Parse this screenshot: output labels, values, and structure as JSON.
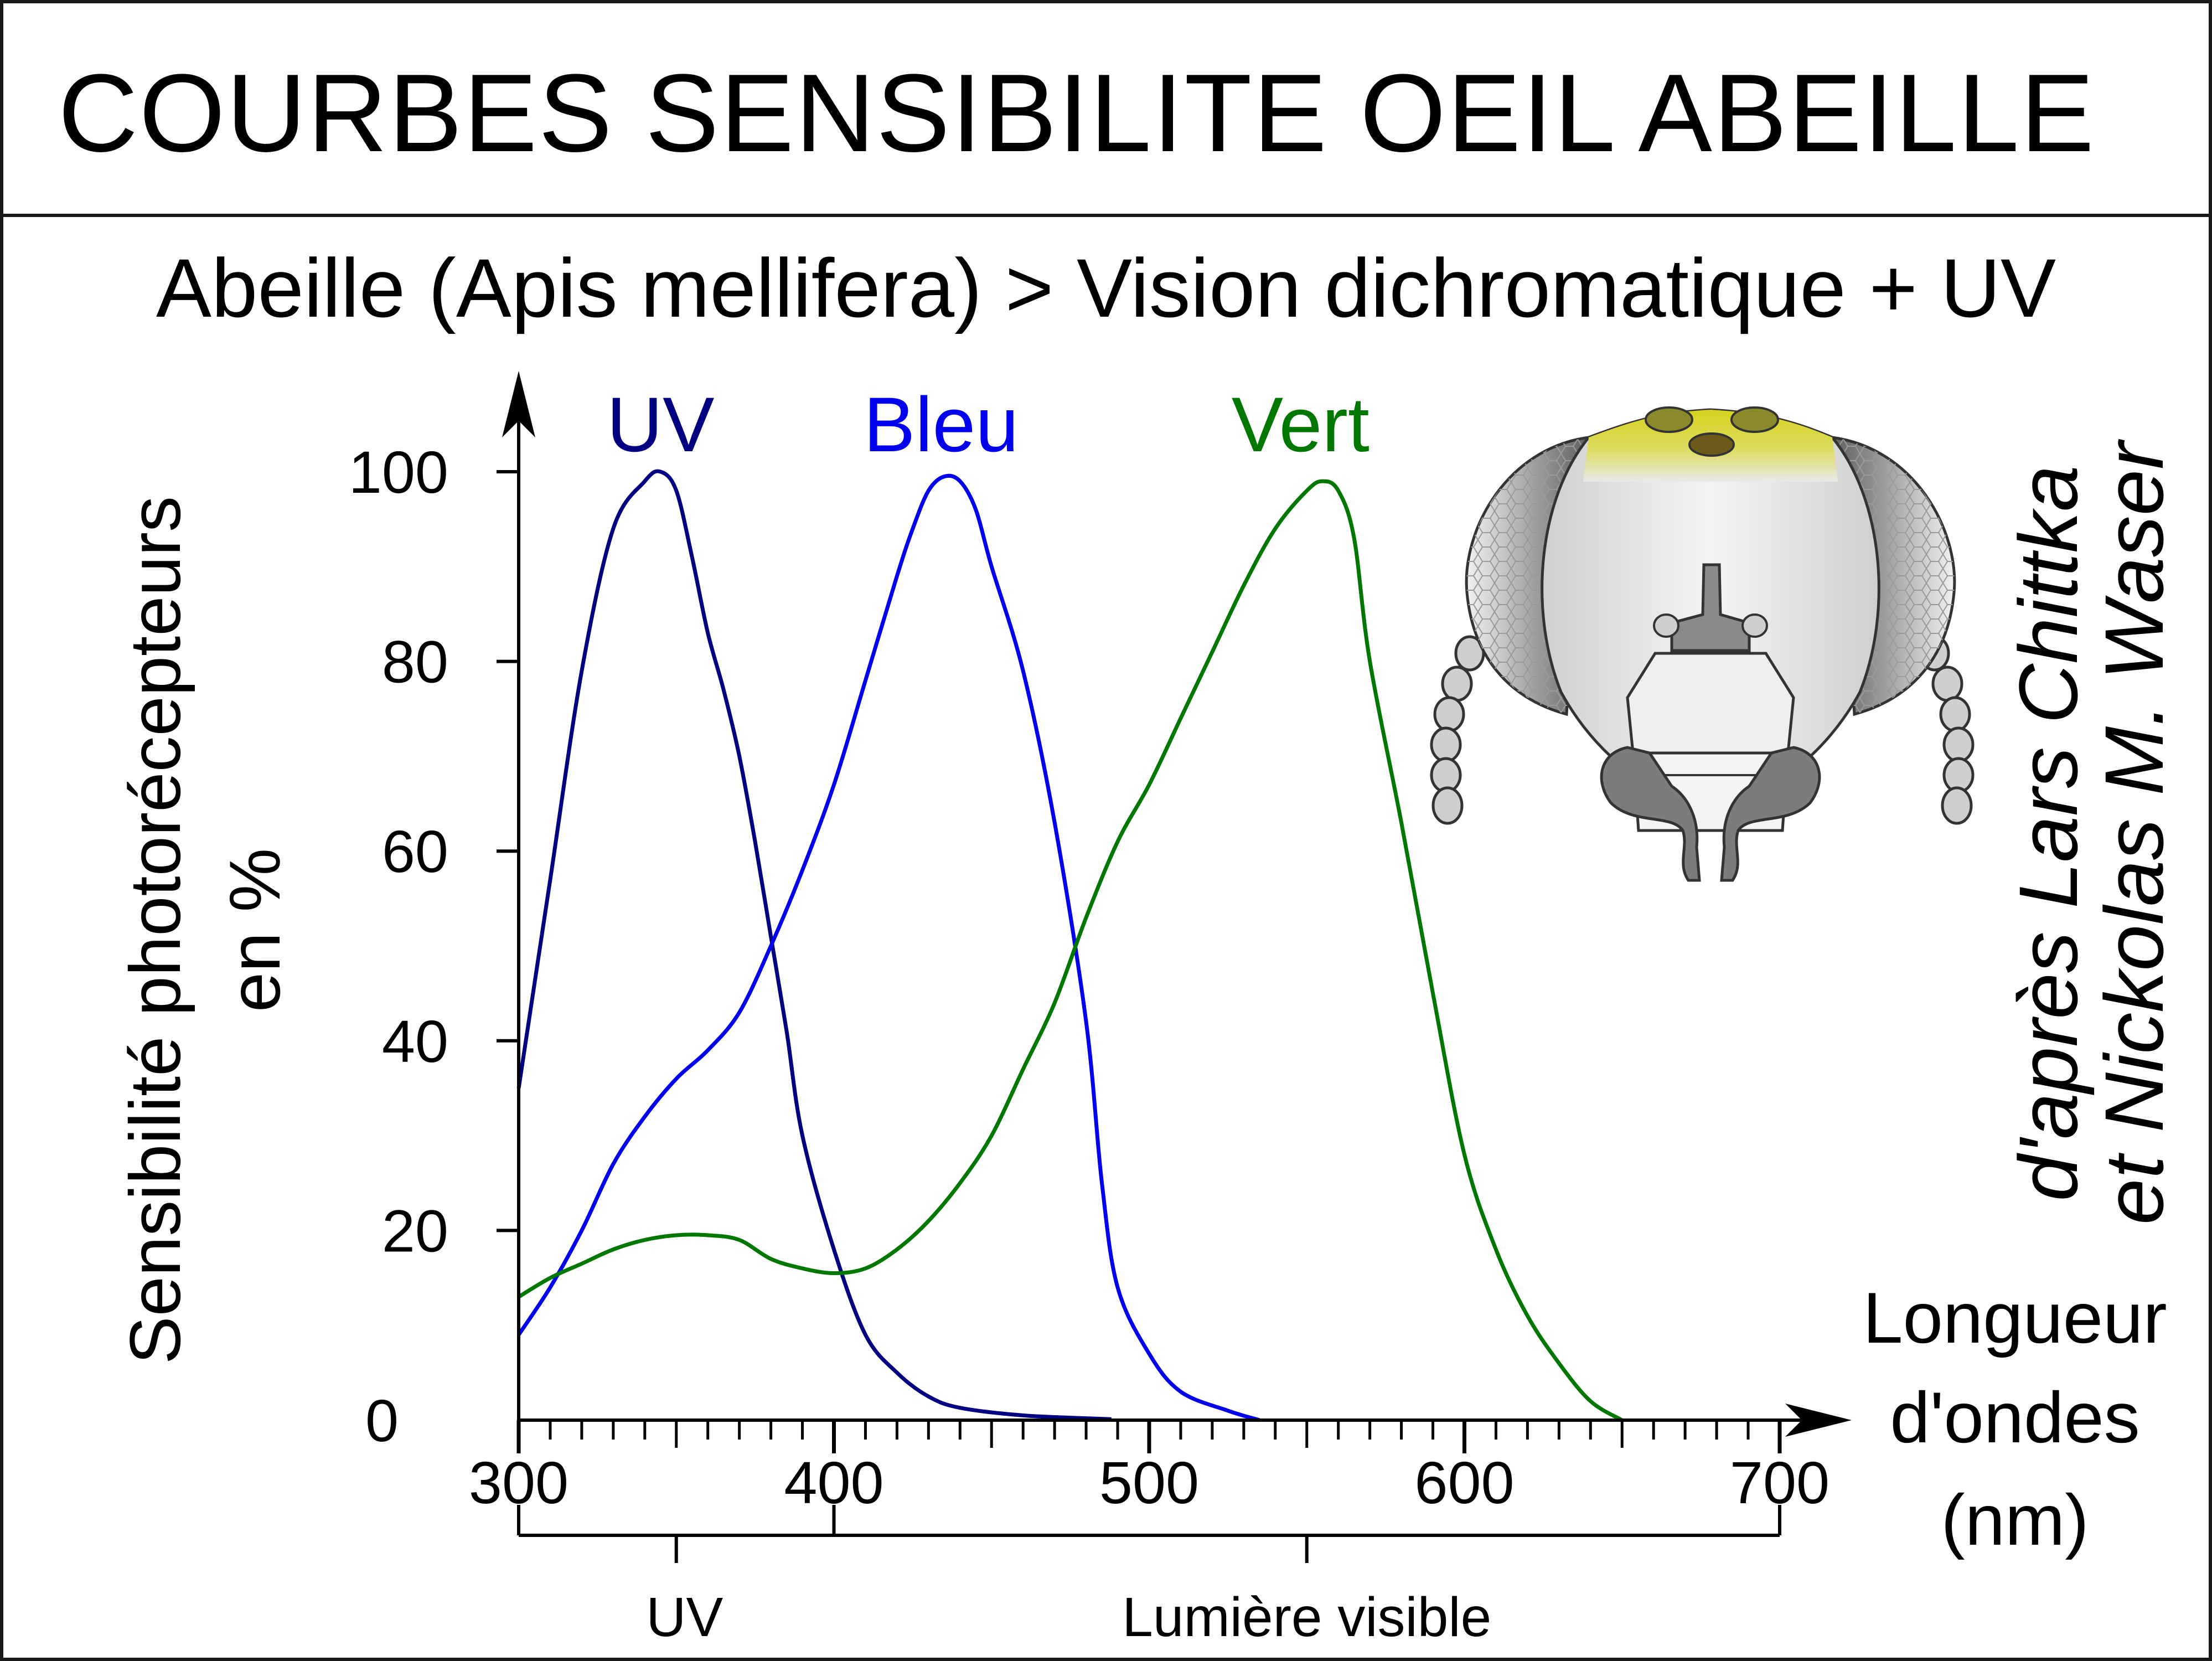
{
  "header": {
    "title": "COURBES SENSIBILITE OEIL ABEILLE",
    "subtitle": "Abeille (Apis mellifera) > Vision dichromatique + UV"
  },
  "credit": {
    "line1": "d'après Lars Chittka",
    "line2": "et Nickolas M. Waser"
  },
  "colors": {
    "uv": "#000080",
    "blue": "#0000ee",
    "green": "#007700",
    "axis": "#000000"
  },
  "illustration": {
    "icon": "bee-head-icon"
  },
  "chart_data": {
    "type": "line",
    "title": "COURBES SENSIBILITE OEIL ABEILLE",
    "subtitle": "Abeille (Apis mellifera) > Vision dichromatique + UV",
    "ylabel": [
      "Sensibilité photorécepteurs",
      "en %"
    ],
    "xlabel": [
      "Longueur",
      "d'ondes",
      "(nm)"
    ],
    "xlim": [
      300,
      700
    ],
    "ylim": [
      0,
      100
    ],
    "x_ticks": [
      300,
      400,
      500,
      600,
      700
    ],
    "y_ticks": [
      0,
      20,
      40,
      60,
      80,
      100
    ],
    "x_minor_step": 10,
    "bands": [
      {
        "label": "UV",
        "from": 300,
        "to": 400
      },
      {
        "label": "Lumière visible",
        "from": 400,
        "to": 700
      }
    ],
    "series": [
      {
        "name": "UV",
        "color": "#000080",
        "points": [
          [
            300,
            35
          ],
          [
            310,
            57
          ],
          [
            320,
            79
          ],
          [
            330,
            94
          ],
          [
            340,
            99
          ],
          [
            345,
            100
          ],
          [
            350,
            98
          ],
          [
            355,
            91
          ],
          [
            360,
            83
          ],
          [
            365,
            77
          ],
          [
            370,
            70
          ],
          [
            375,
            61
          ],
          [
            380,
            51
          ],
          [
            385,
            41
          ],
          [
            390,
            30
          ],
          [
            400,
            18
          ],
          [
            410,
            9
          ],
          [
            420,
            5
          ],
          [
            430,
            2.5
          ],
          [
            440,
            1.3
          ],
          [
            460,
            0.5
          ],
          [
            480,
            0.2
          ],
          [
            488,
            0.1
          ]
        ]
      },
      {
        "name": "Bleu",
        "color": "#0000ee",
        "points": [
          [
            300,
            9
          ],
          [
            310,
            14
          ],
          [
            320,
            20
          ],
          [
            330,
            27
          ],
          [
            340,
            32
          ],
          [
            350,
            36
          ],
          [
            360,
            39
          ],
          [
            370,
            43
          ],
          [
            380,
            50
          ],
          [
            390,
            58
          ],
          [
            400,
            67
          ],
          [
            410,
            78
          ],
          [
            420,
            89
          ],
          [
            425,
            94
          ],
          [
            430,
            98
          ],
          [
            435,
            99.5
          ],
          [
            440,
            99
          ],
          [
            445,
            96
          ],
          [
            450,
            90
          ],
          [
            460,
            79
          ],
          [
            470,
            63
          ],
          [
            480,
            42
          ],
          [
            485,
            25
          ],
          [
            490,
            14
          ],
          [
            500,
            7
          ],
          [
            510,
            3
          ],
          [
            525,
            1
          ],
          [
            535,
            0
          ]
        ]
      },
      {
        "name": "Vert",
        "color": "#007700",
        "points": [
          [
            300,
            13
          ],
          [
            310,
            15
          ],
          [
            320,
            16.5
          ],
          [
            330,
            18
          ],
          [
            340,
            19
          ],
          [
            350,
            19.5
          ],
          [
            360,
            19.5
          ],
          [
            370,
            19
          ],
          [
            380,
            17
          ],
          [
            390,
            16
          ],
          [
            400,
            15.5
          ],
          [
            410,
            16
          ],
          [
            420,
            18
          ],
          [
            430,
            21
          ],
          [
            440,
            25
          ],
          [
            450,
            30
          ],
          [
            460,
            37
          ],
          [
            470,
            44
          ],
          [
            480,
            53
          ],
          [
            490,
            61
          ],
          [
            500,
            67
          ],
          [
            510,
            74
          ],
          [
            520,
            81
          ],
          [
            530,
            88
          ],
          [
            540,
            94
          ],
          [
            550,
            98
          ],
          [
            555,
            99
          ],
          [
            560,
            98
          ],
          [
            565,
            93
          ],
          [
            570,
            80
          ],
          [
            580,
            63
          ],
          [
            590,
            45
          ],
          [
            600,
            28
          ],
          [
            610,
            18
          ],
          [
            620,
            11
          ],
          [
            630,
            6
          ],
          [
            640,
            2
          ],
          [
            650,
            0
          ]
        ]
      }
    ]
  }
}
